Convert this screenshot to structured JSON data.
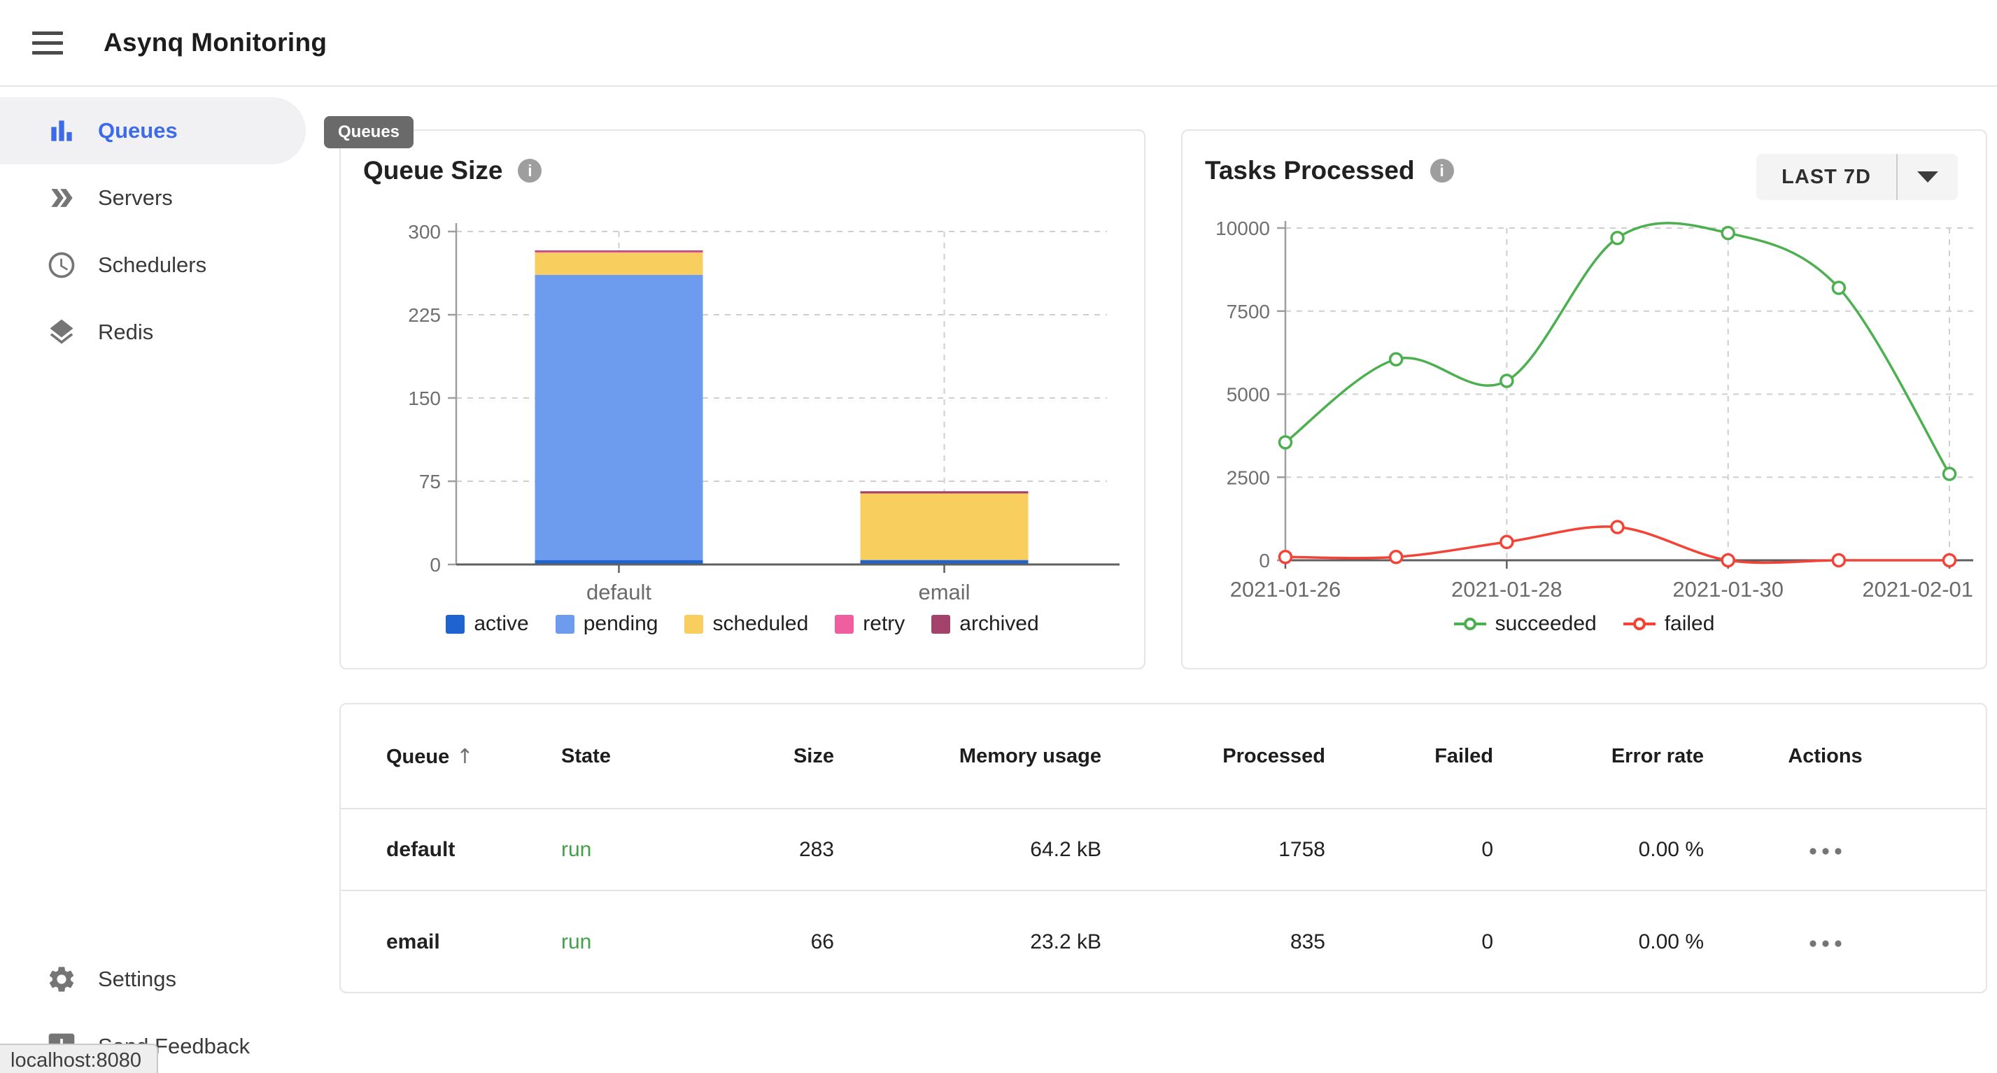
{
  "header": {
    "title": "Asynq Monitoring"
  },
  "sidebar": {
    "items": [
      {
        "label": "Queues",
        "icon": "bar-chart-icon",
        "active": true
      },
      {
        "label": "Servers",
        "icon": "double-arrow-icon",
        "active": false
      },
      {
        "label": "Schedulers",
        "icon": "clock-icon",
        "active": false
      },
      {
        "label": "Redis",
        "icon": "layers-icon",
        "active": false
      },
      {
        "label": "Settings",
        "icon": "gear-icon",
        "active": false
      },
      {
        "label": "Send Feedback",
        "icon": "feedback-icon",
        "active": false
      }
    ]
  },
  "tooltip": {
    "label": "Queues"
  },
  "status_bar": {
    "text": "localhost:8080"
  },
  "cards": {
    "queue_size": {
      "title": "Queue Size"
    },
    "tasks_processed": {
      "title": "Tasks Processed",
      "range_button": {
        "label": "LAST 7D"
      }
    }
  },
  "table": {
    "columns": [
      "Queue",
      "State",
      "Size",
      "Memory usage",
      "Processed",
      "Failed",
      "Error rate",
      "Actions"
    ],
    "rows": [
      {
        "queue": "default",
        "state": "run",
        "size": "283",
        "memory": "64.2 kB",
        "processed": "1758",
        "failed": "0",
        "error_rate": "0.00 %",
        "actions": "more"
      },
      {
        "queue": "email",
        "state": "run",
        "size": "66",
        "memory": "23.2 kB",
        "processed": "835",
        "failed": "0",
        "error_rate": "0.00 %",
        "actions": "more"
      }
    ]
  },
  "colors": {
    "accent_blue": "#3d6be8",
    "run_state_green": "#43a047",
    "tooltip_bg": "#6a6a6a",
    "axis_label_gray": "#6f6f6f"
  },
  "chart_data": [
    {
      "type": "bar",
      "stacked": true,
      "title": "Queue Size",
      "categories": [
        "default",
        "email"
      ],
      "series": [
        {
          "name": "active",
          "color": "#1e63d0",
          "values": [
            4,
            4
          ]
        },
        {
          "name": "pending",
          "color": "#6d9cee",
          "values": [
            257,
            0
          ]
        },
        {
          "name": "scheduled",
          "color": "#f8ce5f",
          "values": [
            20,
            60
          ]
        },
        {
          "name": "retry",
          "color": "#ef5fa0",
          "values": [
            1,
            0
          ]
        },
        {
          "name": "archived",
          "color": "#a3426a",
          "values": [
            1,
            2
          ]
        }
      ],
      "xlabel": "",
      "ylabel": "",
      "ylim": [
        0,
        300
      ],
      "yticks": [
        0,
        75,
        150,
        225,
        300
      ],
      "grid": true,
      "legend_position": "bottom"
    },
    {
      "type": "line",
      "title": "Tasks Processed",
      "x": [
        "2021-01-26",
        "2021-01-27",
        "2021-01-28",
        "2021-01-29",
        "2021-01-30",
        "2021-01-31",
        "2021-02-01"
      ],
      "xtick_labels": [
        "2021-01-26",
        "2021-01-28",
        "2021-01-30",
        "2021-02-01"
      ],
      "series": [
        {
          "name": "succeeded",
          "color": "#4caf50",
          "values": [
            3550,
            6050,
            5400,
            9700,
            9850,
            8200,
            2600
          ]
        },
        {
          "name": "failed",
          "color": "#f44336",
          "values": [
            100,
            100,
            550,
            1000,
            0,
            0,
            0
          ]
        }
      ],
      "xlabel": "",
      "ylabel": "",
      "ylim": [
        0,
        10000
      ],
      "yticks": [
        0,
        2500,
        5000,
        7500,
        10000
      ],
      "grid": true,
      "legend_position": "bottom"
    }
  ]
}
